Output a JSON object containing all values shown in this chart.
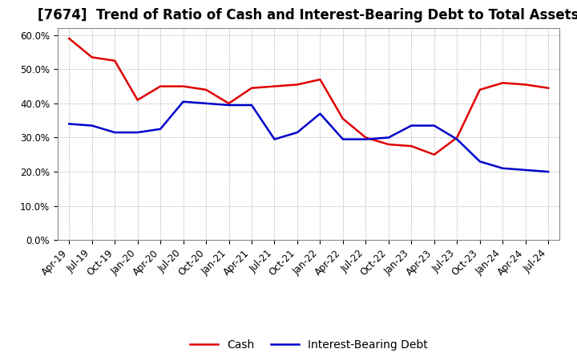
{
  "title": "[7674]  Trend of Ratio of Cash and Interest-Bearing Debt to Total Assets",
  "x_labels": [
    "Apr-19",
    "Jul-19",
    "Oct-19",
    "Jan-20",
    "Apr-20",
    "Jul-20",
    "Oct-20",
    "Jan-21",
    "Apr-21",
    "Jul-21",
    "Oct-21",
    "Jan-22",
    "Apr-22",
    "Jul-22",
    "Oct-22",
    "Jan-23",
    "Apr-23",
    "Jul-23",
    "Oct-23",
    "Jan-24",
    "Apr-24",
    "Jul-24"
  ],
  "cash": [
    0.59,
    0.535,
    0.525,
    0.41,
    0.45,
    0.45,
    0.44,
    0.4,
    0.445,
    0.45,
    0.455,
    0.47,
    0.355,
    0.3,
    0.28,
    0.275,
    0.25,
    0.3,
    0.44,
    0.46,
    0.455,
    0.445
  ],
  "interest_bearing_debt": [
    0.34,
    0.335,
    0.315,
    0.315,
    0.325,
    0.405,
    0.4,
    0.395,
    0.395,
    0.295,
    0.315,
    0.37,
    0.295,
    0.295,
    0.3,
    0.335,
    0.335,
    0.295,
    0.23,
    0.21,
    0.205,
    0.2
  ],
  "cash_color": "#e00000",
  "debt_color": "#0000cc",
  "background_color": "#ffffff",
  "grid_color": "#999999",
  "ylim": [
    0.0,
    0.62
  ],
  "yticks": [
    0.0,
    0.1,
    0.2,
    0.3,
    0.4,
    0.5,
    0.6
  ],
  "legend_cash": "Cash",
  "legend_debt": "Interest-Bearing Debt",
  "title_fontsize": 12,
  "tick_fontsize": 8.5,
  "legend_fontsize": 10
}
